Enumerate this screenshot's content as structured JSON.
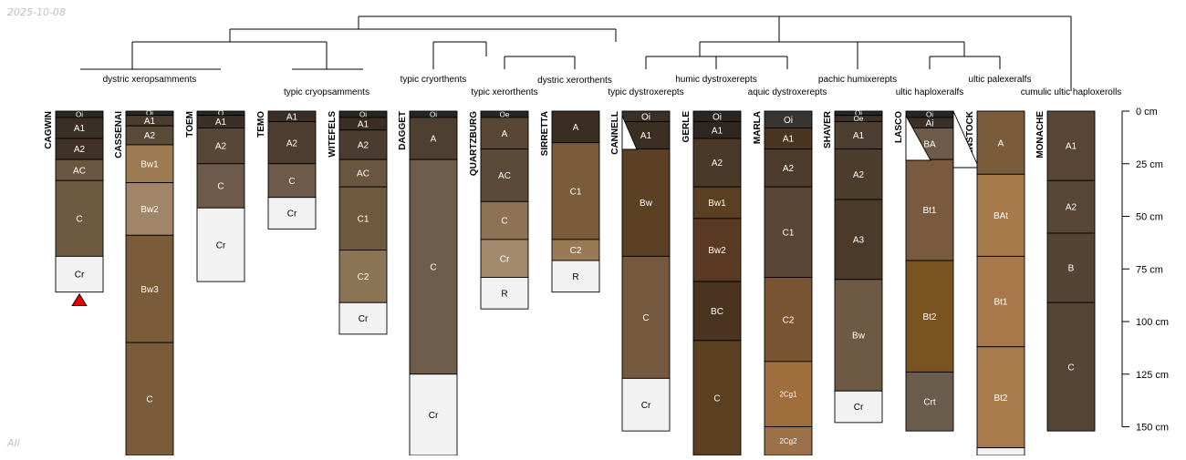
{
  "date": "2025-10-08",
  "footer": "All",
  "chart_data": {
    "type": "soil-profile-sketch",
    "depth_unit": "cm",
    "depth_ticks": [
      0,
      25,
      50,
      75,
      100,
      125,
      150
    ],
    "depth_tick_labels": [
      "0 cm",
      "25 cm",
      "50 cm",
      "75 cm",
      "100 cm",
      "125 cm",
      "150 cm"
    ],
    "profiles": [
      {
        "name": "CAGWIN",
        "taxon": "dystric xeropsamments",
        "bottom_marker": true,
        "horizons": [
          {
            "name": "Oi",
            "top": 0,
            "bottom": 3,
            "color": "#2d2722"
          },
          {
            "name": "A1",
            "top": 3,
            "bottom": 13,
            "color": "#3a2f25"
          },
          {
            "name": "A2",
            "top": 13,
            "bottom": 23,
            "color": "#3f3224"
          },
          {
            "name": "AC",
            "top": 23,
            "bottom": 33,
            "color": "#6b5642"
          },
          {
            "name": "C",
            "top": 33,
            "bottom": 69,
            "color": "#6e5a40"
          },
          {
            "name": "Cr",
            "top": 69,
            "bottom": 86,
            "color": "#f2f2f2"
          }
        ]
      },
      {
        "name": "CASSENAI",
        "taxon": "dystric xeropsamments",
        "horizons": [
          {
            "name": "Oi",
            "top": 0,
            "bottom": 2,
            "color": "#2a2520"
          },
          {
            "name": "A1",
            "top": 2,
            "bottom": 7,
            "color": "#4a3d30"
          },
          {
            "name": "A2",
            "top": 7,
            "bottom": 16,
            "color": "#5a4a38"
          },
          {
            "name": "Bw1",
            "top": 16,
            "bottom": 34,
            "color": "#9c7a52"
          },
          {
            "name": "Bw2",
            "top": 34,
            "bottom": 59,
            "color": "#a08569"
          },
          {
            "name": "Bw3",
            "top": 59,
            "bottom": 110,
            "color": "#7a5c3a"
          },
          {
            "name": "C",
            "top": 110,
            "bottom": 165,
            "color": "#7a5c3a"
          }
        ]
      },
      {
        "name": "TOEM",
        "taxon": "typic cryopsamments",
        "horizons": [
          {
            "name": "O",
            "top": 0,
            "bottom": 2,
            "color": "#2c2620"
          },
          {
            "name": "A1",
            "top": 2,
            "bottom": 8,
            "color": "#3a3028"
          },
          {
            "name": "A2",
            "top": 8,
            "bottom": 25,
            "color": "#584636"
          },
          {
            "name": "C",
            "top": 25,
            "bottom": 46,
            "color": "#6d5a4a"
          },
          {
            "name": "Cr",
            "top": 46,
            "bottom": 81,
            "color": "#f2f2f2"
          }
        ]
      },
      {
        "name": "TEMO",
        "taxon": "typic cryopsamments",
        "horizons": [
          {
            "name": "A1",
            "top": 0,
            "bottom": 5,
            "color": "#3b2f25"
          },
          {
            "name": "A2",
            "top": 5,
            "bottom": 25,
            "color": "#4d3e30"
          },
          {
            "name": "C",
            "top": 25,
            "bottom": 41,
            "color": "#6d5a48"
          },
          {
            "name": "Cr",
            "top": 41,
            "bottom": 56,
            "color": "#f2f2f2"
          }
        ]
      },
      {
        "name": "WITEFELS",
        "taxon": "typic cryopsamments",
        "horizons": [
          {
            "name": "Oi",
            "top": 0,
            "bottom": 3,
            "color": "#2b2520"
          },
          {
            "name": "A1",
            "top": 3,
            "bottom": 9,
            "color": "#3b2f24"
          },
          {
            "name": "A2",
            "top": 9,
            "bottom": 23,
            "color": "#4a3c2e"
          },
          {
            "name": "AC",
            "top": 23,
            "bottom": 36,
            "color": "#6a5640"
          },
          {
            "name": "C1",
            "top": 36,
            "bottom": 66,
            "color": "#6f5a40"
          },
          {
            "name": "C2",
            "top": 66,
            "bottom": 91,
            "color": "#8c7555"
          },
          {
            "name": "Cr",
            "top": 91,
            "bottom": 106,
            "color": "#f2f2f2"
          }
        ]
      },
      {
        "name": "DAGGET",
        "taxon": "typic cryorthents",
        "horizons": [
          {
            "name": "Oi",
            "top": 0,
            "bottom": 3,
            "color": "#2a2520"
          },
          {
            "name": "A",
            "top": 3,
            "bottom": 23,
            "color": "#4e4030"
          },
          {
            "name": "C",
            "top": 23,
            "bottom": 125,
            "color": "#6e5d4a"
          },
          {
            "name": "Cr",
            "top": 125,
            "bottom": 165,
            "color": "#f2f2f2"
          }
        ]
      },
      {
        "name": "QUARTZBURG",
        "taxon": "typic xerorthents",
        "horizons": [
          {
            "name": "Oe",
            "top": 0,
            "bottom": 3,
            "color": "#2a2520"
          },
          {
            "name": "A",
            "top": 3,
            "bottom": 18,
            "color": "#5a4634"
          },
          {
            "name": "AC",
            "top": 18,
            "bottom": 43,
            "color": "#5c4a38"
          },
          {
            "name": "C",
            "top": 43,
            "bottom": 61,
            "color": "#8d7256"
          },
          {
            "name": "Cr",
            "top": 61,
            "bottom": 79,
            "color": "#a48a6c"
          },
          {
            "name": "R",
            "top": 79,
            "bottom": 94,
            "color": "#f2f2f2"
          }
        ]
      },
      {
        "name": "SIRRETTA",
        "taxon": "dystric xerorthents",
        "horizons": [
          {
            "name": "A",
            "top": 0,
            "bottom": 15,
            "color": "#3a2e22"
          },
          {
            "name": "C1",
            "top": 15,
            "bottom": 61,
            "color": "#7a5c3a"
          },
          {
            "name": "C2",
            "top": 61,
            "bottom": 71,
            "color": "#9a7a55"
          },
          {
            "name": "R",
            "top": 71,
            "bottom": 86,
            "color": "#f2f2f2"
          }
        ]
      },
      {
        "name": "CANNELL",
        "taxon": "typic dystroxerepts",
        "horizons": [
          {
            "name": "Oi",
            "top": 0,
            "bottom": 5,
            "color": "#3a3028"
          },
          {
            "name": "A1",
            "top": 5,
            "bottom": 18,
            "color": "#3b2e22"
          },
          {
            "name": "Bw",
            "top": 18,
            "bottom": 69,
            "color": "#5c4024"
          },
          {
            "name": "C",
            "top": 69,
            "bottom": 127,
            "color": "#75593e"
          },
          {
            "name": "Cr",
            "top": 127,
            "bottom": 152,
            "color": "#f2f2f2"
          }
        ]
      },
      {
        "name": "GERLE",
        "taxon": "humic dystroxerepts",
        "horizons": [
          {
            "name": "Oi",
            "top": 0,
            "bottom": 5,
            "color": "#2a2520"
          },
          {
            "name": "A1",
            "top": 5,
            "bottom": 13,
            "color": "#2f2620"
          },
          {
            "name": "A2",
            "top": 13,
            "bottom": 36,
            "color": "#4a3828"
          },
          {
            "name": "Bw1",
            "top": 36,
            "bottom": 51,
            "color": "#5a4020"
          },
          {
            "name": "Bw2",
            "top": 51,
            "bottom": 81,
            "color": "#5a3a24"
          },
          {
            "name": "BC",
            "top": 81,
            "bottom": 109,
            "color": "#4a3420"
          },
          {
            "name": "C",
            "top": 109,
            "bottom": 165,
            "color": "#5a4020"
          }
        ]
      },
      {
        "name": "MARLA",
        "taxon": "aquic dystroxerepts",
        "horizons": [
          {
            "name": "Oi",
            "top": 0,
            "bottom": 8,
            "color": "#3a3430"
          },
          {
            "name": "A1",
            "top": 8,
            "bottom": 18,
            "color": "#4a3620"
          },
          {
            "name": "A2",
            "top": 18,
            "bottom": 36,
            "color": "#4d3c2c"
          },
          {
            "name": "C1",
            "top": 36,
            "bottom": 79,
            "color": "#5a4634"
          },
          {
            "name": "C2",
            "top": 79,
            "bottom": 119,
            "color": "#7a5534"
          },
          {
            "name": "2Cg1",
            "top": 119,
            "bottom": 150,
            "color": "#a06e3c"
          },
          {
            "name": "2Cg2",
            "top": 150,
            "bottom": 165,
            "color": "#9c7048"
          }
        ]
      },
      {
        "name": "SHAVER",
        "taxon": "pachic humixerepts",
        "horizons": [
          {
            "name": "Oi",
            "top": 0,
            "bottom": 2,
            "color": "#2a2520"
          },
          {
            "name": "Oe",
            "top": 2,
            "bottom": 5,
            "color": "#3a3028"
          },
          {
            "name": "A1",
            "top": 5,
            "bottom": 18,
            "color": "#4c3e30"
          },
          {
            "name": "A2",
            "top": 18,
            "bottom": 42,
            "color": "#4d3d2d"
          },
          {
            "name": "A3",
            "top": 42,
            "bottom": 80,
            "color": "#4a3a2a"
          },
          {
            "name": "Bw",
            "top": 80,
            "bottom": 133,
            "color": "#6e5a44"
          },
          {
            "name": "Cr",
            "top": 133,
            "bottom": 148,
            "color": "#f2f2f2"
          }
        ]
      },
      {
        "name": "LASCO",
        "taxon": "ultic haploxeralfs",
        "horizons": [
          {
            "name": "Oi",
            "top": 0,
            "bottom": 3,
            "color": "#2a2520"
          },
          {
            "name": "Ai",
            "top": 3,
            "bottom": 8,
            "color": "#3a3028"
          },
          {
            "name": "BA",
            "top": 8,
            "bottom": 23,
            "color": "#6e5a48"
          },
          {
            "name": "Bt1",
            "top": 23,
            "bottom": 71,
            "color": "#7a5a3e"
          },
          {
            "name": "Bt2",
            "top": 71,
            "bottom": 124,
            "color": "#7a5420"
          },
          {
            "name": "Crt",
            "top": 124,
            "bottom": 152,
            "color": "#6b5d4c"
          }
        ]
      },
      {
        "name": "PENSTOCK",
        "taxon": "ultic palexeralfs",
        "horizons": [
          {
            "name": "A",
            "top": 0,
            "bottom": 30,
            "color": "#7a5c3a"
          },
          {
            "name": "BAt",
            "top": 30,
            "bottom": 69,
            "color": "#a67a4a"
          },
          {
            "name": "Bt1",
            "top": 69,
            "bottom": 112,
            "color": "#a8784a"
          },
          {
            "name": "Bt2",
            "top": 112,
            "bottom": 160,
            "color": "#a87a4c"
          },
          {
            "name": "",
            "top": 160,
            "bottom": 165,
            "color": "#f2f2f2"
          }
        ]
      },
      {
        "name": "MONACHE",
        "taxon": "cumulic ultic haploxerolls",
        "horizons": [
          {
            "name": "A1",
            "top": 0,
            "bottom": 33,
            "color": "#5a4634"
          },
          {
            "name": "A2",
            "top": 33,
            "bottom": 58,
            "color": "#584636"
          },
          {
            "name": "B",
            "top": 58,
            "bottom": 91,
            "color": "#554333"
          },
          {
            "name": "C",
            "top": 91,
            "bottom": 152,
            "color": "#554535"
          }
        ]
      }
    ]
  }
}
